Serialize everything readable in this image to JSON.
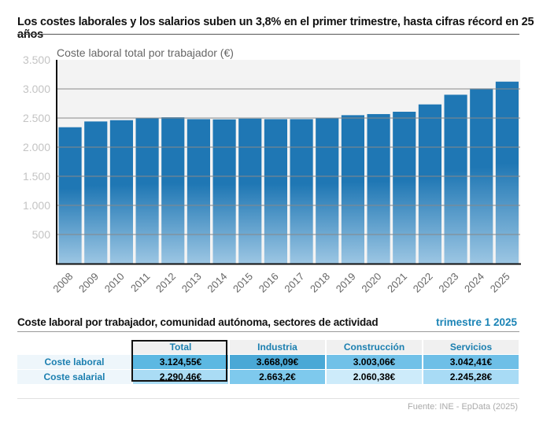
{
  "title": "Los costes laborales y los salarios suben un 3,8% en el primer trimestre, hasta cifras récord en 25 años",
  "chart_data": {
    "type": "bar",
    "title": "Coste laboral total por trabajador (€)",
    "categories": [
      "2008",
      "2009",
      "2010",
      "2011",
      "2012",
      "2013",
      "2014",
      "2015",
      "2016",
      "2017",
      "2018",
      "2019",
      "2020",
      "2021",
      "2022",
      "2023",
      "2024",
      "2025"
    ],
    "values": [
      2342,
      2441,
      2463,
      2495,
      2513,
      2481,
      2477,
      2490,
      2481,
      2481,
      2500,
      2549,
      2568,
      2608,
      2734,
      2900,
      3008,
      3125
    ],
    "ylim": [
      0,
      3500
    ],
    "yticks": [
      "500",
      "1.000",
      "1.500",
      "2.000",
      "2.500",
      "3.000",
      "3.500"
    ],
    "grid": true,
    "bar_color": "#1f77b4"
  },
  "table": {
    "title": "Coste laboral por trabajador, comunidad autónoma, sectores de actividad",
    "period": "trimestre 1 2025",
    "columns": [
      "Total",
      "Industria",
      "Construcción",
      "Servicios"
    ],
    "rows": [
      {
        "label": "Coste laboral",
        "values": [
          "3.124,55€",
          "3.668,09€",
          "3.003,06€",
          "3.042,41€"
        ],
        "colors": [
          "#5cb8e2",
          "#4aa8d6",
          "#71c1e8",
          "#6ebfe7"
        ]
      },
      {
        "label": "Coste salarial",
        "values": [
          "2.290,46€",
          "2.663,2€",
          "2.060,38€",
          "2.245,28€"
        ],
        "colors": [
          "#aadcf5",
          "#7ec9ed",
          "#cdebfa",
          "#a8dbf5"
        ]
      }
    ]
  },
  "source": "Fuente: INE - EpData (2025)"
}
